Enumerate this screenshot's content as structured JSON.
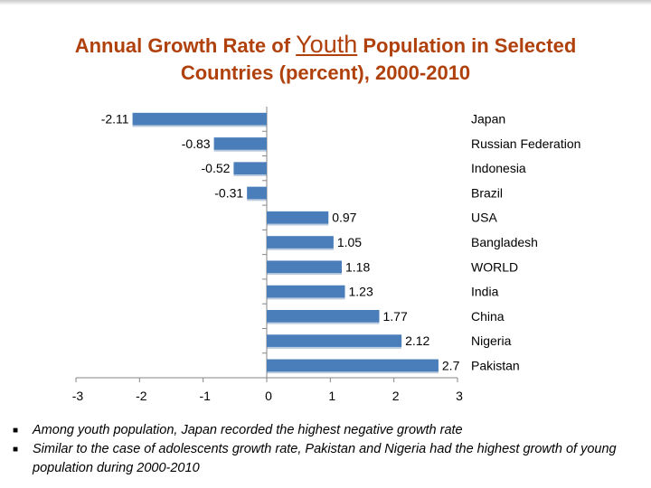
{
  "title": {
    "part1": "Annual Growth Rate of ",
    "emphasis": "Youth",
    "part2": " Population in Selected",
    "line2": "Countries (percent),  2000-2010"
  },
  "chart_data": {
    "type": "bar",
    "orientation": "horizontal",
    "categories": [
      "Japan",
      "Russian Federation",
      "Indonesia",
      "Brazil",
      "USA",
      "Bangladesh",
      "WORLD",
      "India",
      "China",
      "Nigeria",
      "Pakistan"
    ],
    "values": [
      -2.11,
      -0.83,
      -0.52,
      -0.31,
      0.97,
      1.05,
      1.18,
      1.23,
      1.77,
      2.12,
      2.7
    ],
    "data_labels": [
      "-2.11",
      "-0.83",
      "-0.52",
      "-0.31",
      "0.97",
      "1.05",
      "1.18",
      "1.23",
      "1.77",
      "2.12",
      "2.7"
    ],
    "xlim": [
      -3,
      3
    ],
    "xticks": [
      -3,
      -2,
      -1,
      0,
      1,
      2,
      3
    ],
    "xtick_labels": [
      "-3",
      "-2",
      "-1",
      "0",
      "1",
      "2",
      "3"
    ],
    "bar_color": "#4a7ebb",
    "legend": "none",
    "grid": false
  },
  "bullets": [
    "Among youth population, Japan recorded the highest negative growth rate",
    "Similar to  the case of adolescents growth rate, Pakistan and Nigeria had the highest growth of young population during 2000-2010"
  ],
  "colors": {
    "title": "#b0410c",
    "axis": "#868686"
  }
}
